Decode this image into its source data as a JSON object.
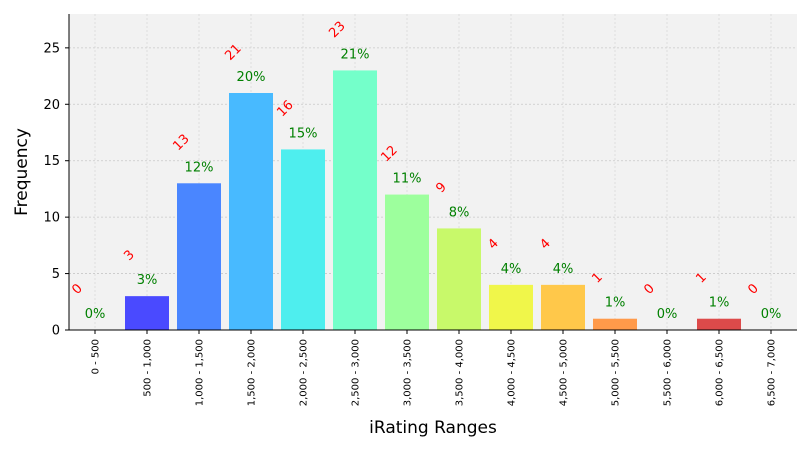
{
  "chart_data": {
    "type": "bar",
    "xlabel": "iRating Ranges",
    "ylabel": "Frequency",
    "ylim": [
      0,
      28
    ],
    "yticks": [
      0,
      5,
      10,
      15,
      20,
      25
    ],
    "grid": true,
    "categories": [
      "0 - 500",
      "500 - 1,000",
      "1,000 - 1,500",
      "1,500 - 2,000",
      "2,000 - 2,500",
      "2,500 - 3,000",
      "3,000 - 3,500",
      "3,500 - 4,000",
      "4,000 - 4,500",
      "4,500 - 5,000",
      "5,000 - 5,500",
      "5,500 - 6,000",
      "6,000 - 6,500",
      "6,500 - 7,000"
    ],
    "values": [
      0,
      3,
      13,
      21,
      16,
      23,
      12,
      9,
      4,
      4,
      1,
      0,
      1,
      0
    ],
    "percent_labels": [
      "0%",
      "3%",
      "12%",
      "20%",
      "15%",
      "21%",
      "11%",
      "8%",
      "4%",
      "4%",
      "1%",
      "0%",
      "1%",
      "0%"
    ],
    "colors": [
      "#2a00ff",
      "#4a4aff",
      "#4a86ff",
      "#48baff",
      "#4eeeee",
      "#74ffca",
      "#9dff9d",
      "#c8f96a",
      "#f0f64a",
      "#ffc84a",
      "#ff9a4a",
      "#ff6a4a",
      "#dd4a4a",
      "#cc3333"
    ]
  }
}
